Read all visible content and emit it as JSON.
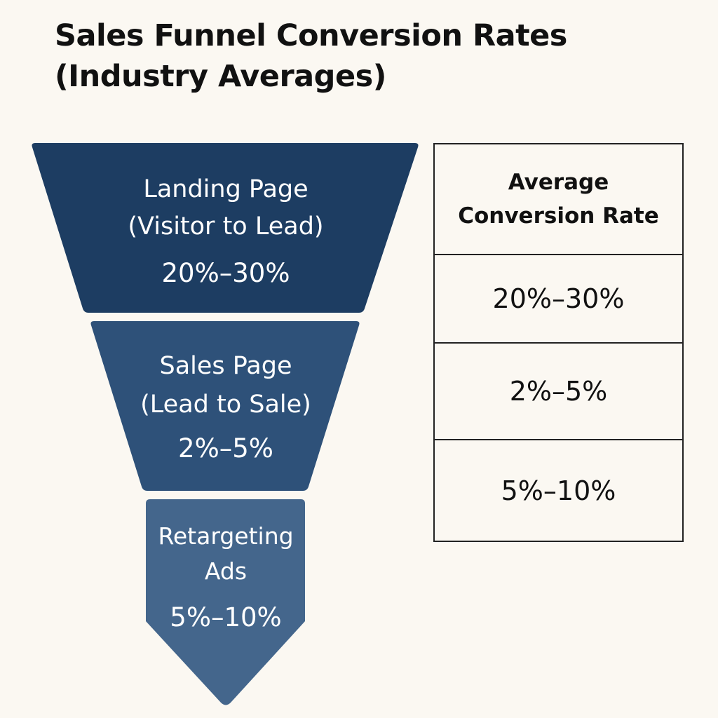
{
  "title": {
    "line1": "Sales Funnel Conversion Rates",
    "line2": "(Industry Averages)"
  },
  "colors": {
    "background": "#fbf8f2",
    "stage_fills": [
      "#1d3d62",
      "#2e5179",
      "#44668c"
    ],
    "text_on_stage": "#ffffff",
    "table_border": "#222222"
  },
  "chart_data": {
    "type": "table",
    "title": "Sales Funnel Conversion Rates (Industry Averages)",
    "stages": [
      {
        "name_lines": [
          "Landing Page",
          "(Visitor to Lead)"
        ],
        "rate": "20%–30%",
        "rate_min": 20,
        "rate_max": 30
      },
      {
        "name_lines": [
          "Sales Page",
          "(Lead to Sale)"
        ],
        "rate": "2%–5%",
        "rate_min": 2,
        "rate_max": 5
      },
      {
        "name_lines": [
          "Retargeting",
          "Ads"
        ],
        "rate": "5%–10%",
        "rate_min": 5,
        "rate_max": 10
      }
    ],
    "table": {
      "header_lines": [
        "Average",
        "Conversion Rate"
      ],
      "rows": [
        "20%–30%",
        "2%–5%",
        "5%–10%"
      ]
    }
  }
}
